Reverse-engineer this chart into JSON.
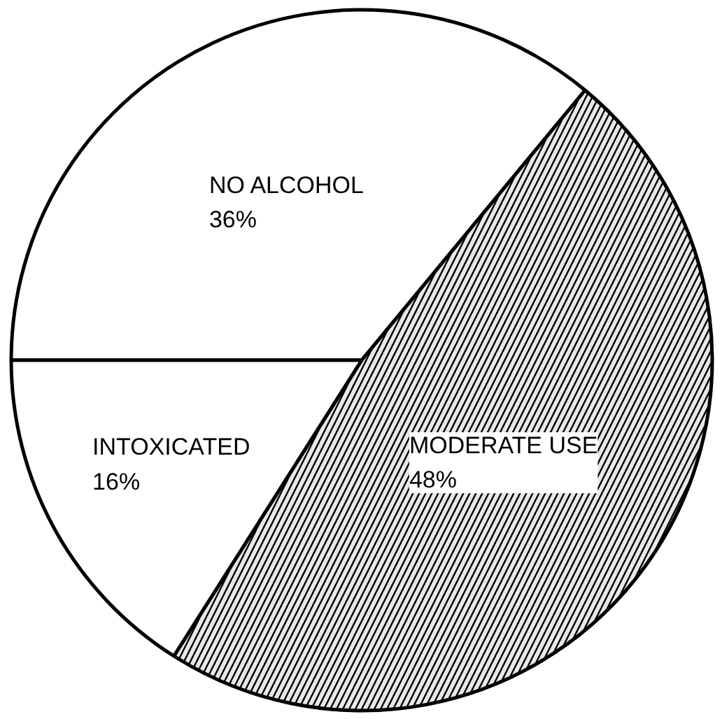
{
  "chart_data": {
    "type": "pie",
    "categories": [
      "NO ALCOHOL",
      "MODERATE USE",
      "INTOXICATED"
    ],
    "values": [
      36,
      48,
      16
    ],
    "colors": [
      "#ffffff",
      "#e8e8e8",
      "#ffffff"
    ],
    "value_labels": [
      "36%",
      "48%",
      "16%"
    ]
  }
}
